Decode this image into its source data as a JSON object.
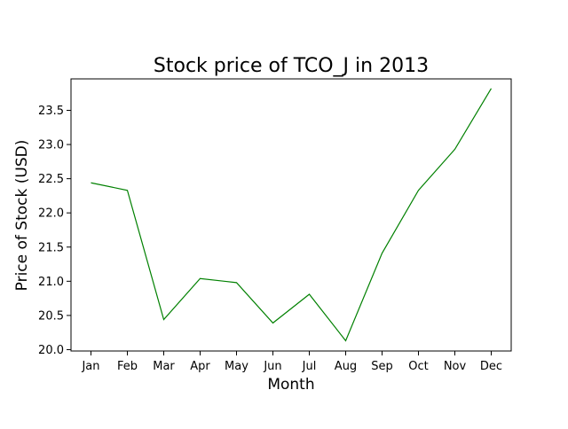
{
  "chart_data": {
    "type": "line",
    "title": "Stock price of TCO_J in 2013",
    "xlabel": "Month",
    "ylabel": "Price of Stock (USD)",
    "categories": [
      "Jan",
      "Feb",
      "Mar",
      "Apr",
      "May",
      "Jun",
      "Jul",
      "Aug",
      "Sep",
      "Oct",
      "Nov",
      "Dec"
    ],
    "series": [
      {
        "values": [
          22.44,
          22.33,
          20.44,
          21.04,
          20.98,
          20.39,
          20.81,
          20.13,
          21.41,
          22.33,
          22.93,
          23.82
        ],
        "color": "#008000"
      }
    ],
    "ylim": [
      19.98,
      23.96
    ],
    "yticks": [
      "20.0",
      "20.5",
      "21.0",
      "21.5",
      "22.0",
      "22.5",
      "23.0",
      "23.5"
    ],
    "grid": false,
    "legend": "none"
  }
}
